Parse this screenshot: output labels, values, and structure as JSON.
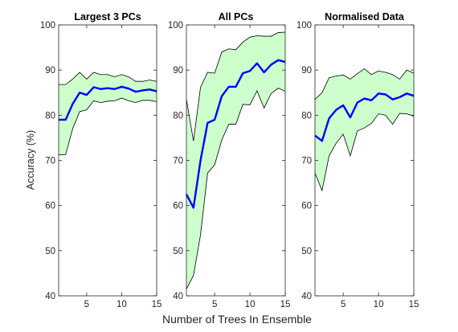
{
  "figure": {
    "ylabel": "Accuracy (%)",
    "xlabel": "Number of Trees In Ensemble"
  },
  "colors": {
    "band_fill": "#ccffcc",
    "band_edge": "#000000",
    "mean_line": "#0000ff",
    "axes": "#262626"
  },
  "chart_data": [
    {
      "type": "line",
      "title": "Largest 3 PCs",
      "xlim": [
        1,
        15
      ],
      "ylim": [
        40,
        100
      ],
      "xticks": [
        5,
        10,
        15
      ],
      "yticks": [
        40,
        50,
        60,
        70,
        80,
        90,
        100
      ],
      "grid": false,
      "x": [
        1,
        2,
        3,
        4,
        5,
        6,
        7,
        8,
        9,
        10,
        11,
        12,
        13,
        14,
        15
      ],
      "series": [
        {
          "role": "mean",
          "values": [
            79,
            79,
            82.5,
            85,
            84.5,
            86.2,
            85.8,
            86,
            85.8,
            86.3,
            85.9,
            85.2,
            85.5,
            85.7,
            85.3
          ]
        },
        {
          "role": "upper",
          "values": [
            86.8,
            86.8,
            88,
            89.5,
            88,
            89.5,
            89,
            89,
            88.5,
            89,
            88.5,
            87.5,
            87.5,
            87.8,
            87.5
          ]
        },
        {
          "role": "lower",
          "values": [
            71.2,
            71.3,
            77,
            80.8,
            81.2,
            83.2,
            82.8,
            83.1,
            83.2,
            83.8,
            83.2,
            82.8,
            83.3,
            83.3,
            83
          ]
        }
      ]
    },
    {
      "type": "line",
      "title": "All PCs",
      "xlim": [
        1,
        15
      ],
      "ylim": [
        40,
        100
      ],
      "xticks": [
        5,
        10,
        15
      ],
      "yticks": [
        40,
        50,
        60,
        70,
        80,
        90,
        100
      ],
      "grid": false,
      "x": [
        1,
        2,
        3,
        4,
        5,
        6,
        7,
        8,
        9,
        10,
        11,
        12,
        13,
        14,
        15
      ],
      "series": [
        {
          "role": "mean",
          "values": [
            62.5,
            59.5,
            70,
            78.3,
            79,
            84.2,
            86.3,
            86.3,
            89.3,
            89.8,
            91.5,
            89.5,
            91.2,
            92.2,
            91.8
          ]
        },
        {
          "role": "upper",
          "values": [
            83.5,
            74.3,
            86.2,
            89.5,
            89.3,
            94,
            94.7,
            94.5,
            96.2,
            97.3,
            97.6,
            97.5,
            97.5,
            98.3,
            98.4
          ]
        },
        {
          "role": "lower",
          "values": [
            41.5,
            44.5,
            53.5,
            67.2,
            69,
            74.5,
            78,
            78,
            82.4,
            82.3,
            85.4,
            81.6,
            84.8,
            86,
            85.3
          ]
        }
      ]
    },
    {
      "type": "line",
      "title": "Normalised Data",
      "xlim": [
        1,
        15
      ],
      "ylim": [
        40,
        100
      ],
      "xticks": [
        5,
        10,
        15
      ],
      "yticks": [
        40,
        50,
        60,
        70,
        80,
        90,
        100
      ],
      "grid": false,
      "x": [
        1,
        2,
        3,
        4,
        5,
        6,
        7,
        8,
        9,
        10,
        11,
        12,
        13,
        14,
        15
      ],
      "series": [
        {
          "role": "mean",
          "values": [
            75.5,
            74.3,
            79.3,
            81.2,
            82.2,
            79.5,
            82.8,
            83.7,
            83.3,
            84.8,
            84.6,
            83.5,
            84,
            84.8,
            84.3
          ]
        },
        {
          "role": "upper",
          "values": [
            83.5,
            85,
            88.3,
            88.7,
            88.9,
            88,
            89.2,
            90.3,
            89,
            89.8,
            89.5,
            89,
            88,
            90,
            89.3
          ]
        },
        {
          "role": "lower",
          "values": [
            67.2,
            63.3,
            71,
            73.8,
            75.8,
            71,
            76.5,
            77.2,
            78.2,
            80.3,
            80,
            78,
            80.4,
            80.3,
            79.8
          ]
        }
      ]
    }
  ]
}
